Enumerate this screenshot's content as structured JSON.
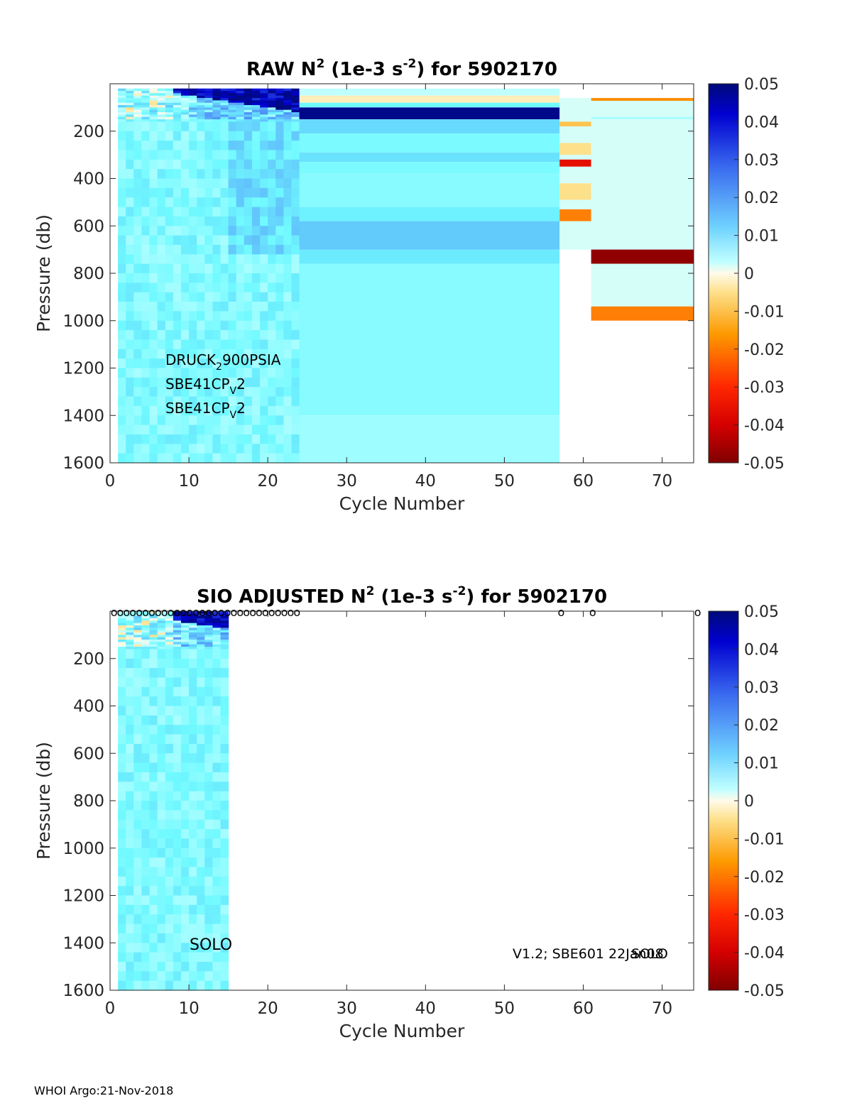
{
  "footer": "WHOI Argo:21-Nov-2018",
  "chart_data": [
    {
      "type": "heatmap",
      "title": {
        "pre": "RAW N",
        "sup1": "2",
        "mid": " (1e-3 s",
        "sup2": "-2",
        "post": ") for 5902170"
      },
      "xlabel": "Cycle Number",
      "ylabel": "Pressure (db)",
      "xlim": [
        0,
        74
      ],
      "ylim": [
        0,
        1600
      ],
      "y_reversed": true,
      "xticks": [
        0,
        10,
        20,
        30,
        40,
        50,
        60,
        70
      ],
      "yticks": [
        200,
        400,
        600,
        800,
        1000,
        1200,
        1400,
        1600
      ],
      "colorbar": {
        "min": -0.05,
        "max": 0.05,
        "ticks": [
          "0.05",
          "0.04",
          "0.03",
          "0.02",
          "0.01",
          "0",
          "-0.01",
          "-0.02",
          "-0.03",
          "-0.04",
          "-0.05"
        ]
      },
      "annotations": [
        {
          "base": "DRUCK",
          "sub": "2",
          "rest": "900PSIA"
        },
        {
          "base": "SBE41CP",
          "sub": "V",
          "rest": "2"
        },
        {
          "base": "SBE41CP",
          "sub": "V",
          "rest": "2"
        }
      ],
      "noisy_region": {
        "x": [
          1,
          24
        ],
        "y": [
          20,
          1600
        ],
        "note": "per-cycle profiles"
      },
      "bands": [
        {
          "x": [
            24,
            57
          ],
          "y": [
            20,
            50
          ],
          "value": 0.003
        },
        {
          "x": [
            24,
            57
          ],
          "y": [
            50,
            80
          ],
          "value": -0.002
        },
        {
          "x": [
            24,
            57
          ],
          "y": [
            80,
            100
          ],
          "value": 0.01
        },
        {
          "x": [
            24,
            57
          ],
          "y": [
            100,
            150
          ],
          "value": 0.048
        },
        {
          "x": [
            24,
            57
          ],
          "y": [
            150,
            210
          ],
          "value": 0.014
        },
        {
          "x": [
            24,
            57
          ],
          "y": [
            210,
            290
          ],
          "value": 0.009
        },
        {
          "x": [
            24,
            57
          ],
          "y": [
            290,
            330
          ],
          "value": 0.013
        },
        {
          "x": [
            24,
            57
          ],
          "y": [
            330,
            380
          ],
          "value": 0.009
        },
        {
          "x": [
            24,
            57
          ],
          "y": [
            380,
            520
          ],
          "value": 0.008
        },
        {
          "x": [
            24,
            57
          ],
          "y": [
            520,
            580
          ],
          "value": 0.011
        },
        {
          "x": [
            24,
            57
          ],
          "y": [
            580,
            700
          ],
          "value": 0.016
        },
        {
          "x": [
            24,
            57
          ],
          "y": [
            700,
            760
          ],
          "value": 0.012
        },
        {
          "x": [
            24,
            57
          ],
          "y": [
            760,
            1400
          ],
          "value": 0.008
        },
        {
          "x": [
            24,
            57
          ],
          "y": [
            1400,
            1600
          ],
          "value": 0.006
        },
        {
          "x": [
            57,
            61
          ],
          "y": [
            60,
            160
          ],
          "value": 0.002
        },
        {
          "x": [
            57,
            61
          ],
          "y": [
            160,
            180
          ],
          "value": -0.007
        },
        {
          "x": [
            57,
            61
          ],
          "y": [
            180,
            250
          ],
          "value": 0.002
        },
        {
          "x": [
            57,
            61
          ],
          "y": [
            250,
            300
          ],
          "value": -0.004
        },
        {
          "x": [
            57,
            61
          ],
          "y": [
            300,
            320
          ],
          "value": 0.002
        },
        {
          "x": [
            57,
            61
          ],
          "y": [
            320,
            350
          ],
          "value": -0.036
        },
        {
          "x": [
            57,
            61
          ],
          "y": [
            350,
            420
          ],
          "value": 0.002
        },
        {
          "x": [
            57,
            61
          ],
          "y": [
            420,
            490
          ],
          "value": -0.004
        },
        {
          "x": [
            57,
            61
          ],
          "y": [
            490,
            530
          ],
          "value": 0.002
        },
        {
          "x": [
            57,
            61
          ],
          "y": [
            530,
            580
          ],
          "value": -0.017
        },
        {
          "x": [
            57,
            61
          ],
          "y": [
            580,
            700
          ],
          "value": 0.002
        },
        {
          "x": [
            61,
            74
          ],
          "y": [
            60,
            72
          ],
          "value": -0.014
        },
        {
          "x": [
            61,
            74
          ],
          "y": [
            72,
            140
          ],
          "value": 0.002
        },
        {
          "x": [
            61,
            74
          ],
          "y": [
            140,
            150
          ],
          "value": 0.005
        },
        {
          "x": [
            61,
            74
          ],
          "y": [
            150,
            700
          ],
          "value": 0.002
        },
        {
          "x": [
            61,
            74
          ],
          "y": [
            700,
            760
          ],
          "value": -0.048
        },
        {
          "x": [
            61,
            74
          ],
          "y": [
            760,
            940
          ],
          "value": 0.002
        },
        {
          "x": [
            61,
            74
          ],
          "y": [
            940,
            1000
          ],
          "value": -0.017
        }
      ]
    },
    {
      "type": "heatmap",
      "title": {
        "pre": "SIO  ADJUSTED N",
        "sup1": "2",
        "mid": " (1e-3 s",
        "sup2": "-2",
        "post": ") for 5902170"
      },
      "xlabel": "Cycle Number",
      "ylabel": "Pressure (db)",
      "xlim": [
        0,
        74
      ],
      "ylim": [
        0,
        1600
      ],
      "y_reversed": true,
      "xticks": [
        0,
        10,
        20,
        30,
        40,
        50,
        60,
        70
      ],
      "yticks": [
        200,
        400,
        600,
        800,
        1000,
        1200,
        1400,
        1600
      ],
      "colorbar": {
        "min": -0.05,
        "max": 0.05,
        "ticks": [
          "0.05",
          "0.04",
          "0.03",
          "0.02",
          "0.01",
          "0",
          "-0.01",
          "-0.02",
          "-0.03",
          "-0.04",
          "-0.05"
        ]
      },
      "annotation_left": "SOLO",
      "annotation_right": "V1.2; SBE601 22Jan08",
      "annotation_overlap": "SOLO",
      "noisy_region": {
        "x": [
          1,
          15
        ],
        "y": [
          0,
          1600
        ],
        "note": "per-cycle profiles"
      },
      "marker_label": "o",
      "marker_cycles": [
        0.5,
        1.3,
        2.1,
        2.9,
        3.7,
        4.5,
        5.3,
        6.1,
        6.9,
        7.7,
        8.5,
        9.3,
        10.1,
        10.9,
        11.7,
        12.5,
        13.3,
        14.1,
        14.9,
        15.7,
        16.5,
        17.3,
        18.1,
        18.9,
        19.7,
        20.5,
        21.3,
        22.1,
        22.9,
        23.7,
        57.2,
        61.2,
        74.5
      ]
    }
  ]
}
